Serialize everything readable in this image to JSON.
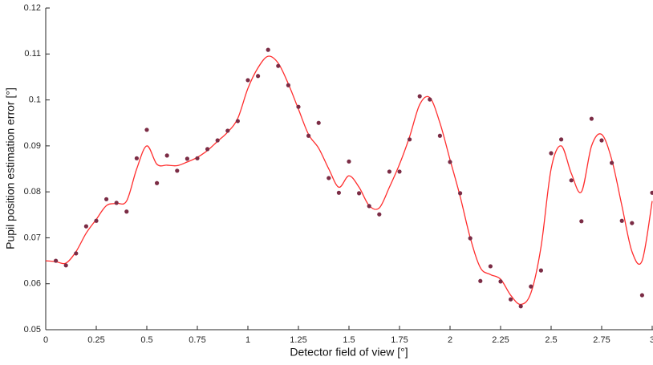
{
  "chart_data": {
    "type": "scatter",
    "x_label": "Detector field of view [°]",
    "y_label": "Pupil position estimation error [°]",
    "xlim": [
      0,
      3
    ],
    "ylim": [
      0.05,
      0.12
    ],
    "xticks": [
      0,
      0.25,
      0.5,
      0.75,
      1,
      1.25,
      1.5,
      1.75,
      2,
      2.25,
      2.5,
      2.75,
      3
    ],
    "yticks": [
      0.05,
      0.06,
      0.07,
      0.08,
      0.09,
      0.1,
      0.11,
      0.12
    ],
    "grid": false,
    "series": [
      {
        "style": "markers",
        "color": "#7b2c45",
        "x": [
          0.05,
          0.1,
          0.15,
          0.2,
          0.25,
          0.3,
          0.35,
          0.4,
          0.45,
          0.5,
          0.55,
          0.6,
          0.65,
          0.7,
          0.75,
          0.8,
          0.85,
          0.9,
          0.95,
          1.0,
          1.05,
          1.1,
          1.15,
          1.2,
          1.25,
          1.3,
          1.35,
          1.4,
          1.45,
          1.5,
          1.55,
          1.6,
          1.65,
          1.7,
          1.75,
          1.8,
          1.85,
          1.9,
          1.95,
          2.0,
          2.05,
          2.1,
          2.15,
          2.2,
          2.25,
          2.3,
          2.35,
          2.4,
          2.45,
          2.5,
          2.55,
          2.6,
          2.65,
          2.7,
          2.75,
          2.8,
          2.85,
          2.9,
          2.95,
          3.0
        ],
        "values": [
          0.065,
          0.064,
          0.0666,
          0.0725,
          0.0737,
          0.0784,
          0.0776,
          0.0757,
          0.0873,
          0.0935,
          0.0819,
          0.0879,
          0.0846,
          0.0872,
          0.0873,
          0.0893,
          0.0912,
          0.0933,
          0.0954,
          0.1043,
          0.1052,
          0.1109,
          0.1074,
          0.1032,
          0.0985,
          0.0922,
          0.095,
          0.083,
          0.0798,
          0.0866,
          0.0797,
          0.0769,
          0.0751,
          0.0844,
          0.0844,
          0.0914,
          0.1008,
          0.1001,
          0.0922,
          0.0865,
          0.0797,
          0.0699,
          0.0606,
          0.0638,
          0.0605,
          0.0566,
          0.0551,
          0.0594,
          0.0629,
          0.0884,
          0.0914,
          0.0825,
          0.0736,
          0.0959,
          0.0912,
          0.0863,
          0.0737,
          0.0732,
          0.0575,
          0.0798
        ]
      },
      {
        "style": "line",
        "color": "#ff2e2e",
        "x": [
          0,
          0.05,
          0.1,
          0.15,
          0.2,
          0.25,
          0.3,
          0.35,
          0.4,
          0.45,
          0.5,
          0.55,
          0.6,
          0.65,
          0.7,
          0.75,
          0.8,
          0.85,
          0.9,
          0.95,
          1.0,
          1.05,
          1.1,
          1.15,
          1.2,
          1.25,
          1.3,
          1.35,
          1.4,
          1.45,
          1.5,
          1.55,
          1.6,
          1.65,
          1.7,
          1.75,
          1.8,
          1.85,
          1.9,
          1.95,
          2.0,
          2.05,
          2.1,
          2.15,
          2.2,
          2.25,
          2.3,
          2.35,
          2.4,
          2.45,
          2.5,
          2.55,
          2.6,
          2.65,
          2.7,
          2.75,
          2.8,
          2.85,
          2.9,
          2.95,
          3.0
        ],
        "values": [
          0.065,
          0.0648,
          0.0645,
          0.067,
          0.071,
          0.074,
          0.077,
          0.0775,
          0.078,
          0.085,
          0.09,
          0.086,
          0.0858,
          0.0857,
          0.0865,
          0.0875,
          0.089,
          0.091,
          0.093,
          0.096,
          0.1025,
          0.107,
          0.1095,
          0.108,
          0.1035,
          0.098,
          0.0925,
          0.0895,
          0.085,
          0.081,
          0.0835,
          0.081,
          0.077,
          0.0765,
          0.081,
          0.086,
          0.092,
          0.099,
          0.1005,
          0.095,
          0.087,
          0.079,
          0.07,
          0.0635,
          0.062,
          0.061,
          0.0575,
          0.0555,
          0.058,
          0.068,
          0.085,
          0.09,
          0.084,
          0.08,
          0.09,
          0.0925,
          0.087,
          0.077,
          0.067,
          0.065,
          0.078
        ]
      }
    ]
  }
}
